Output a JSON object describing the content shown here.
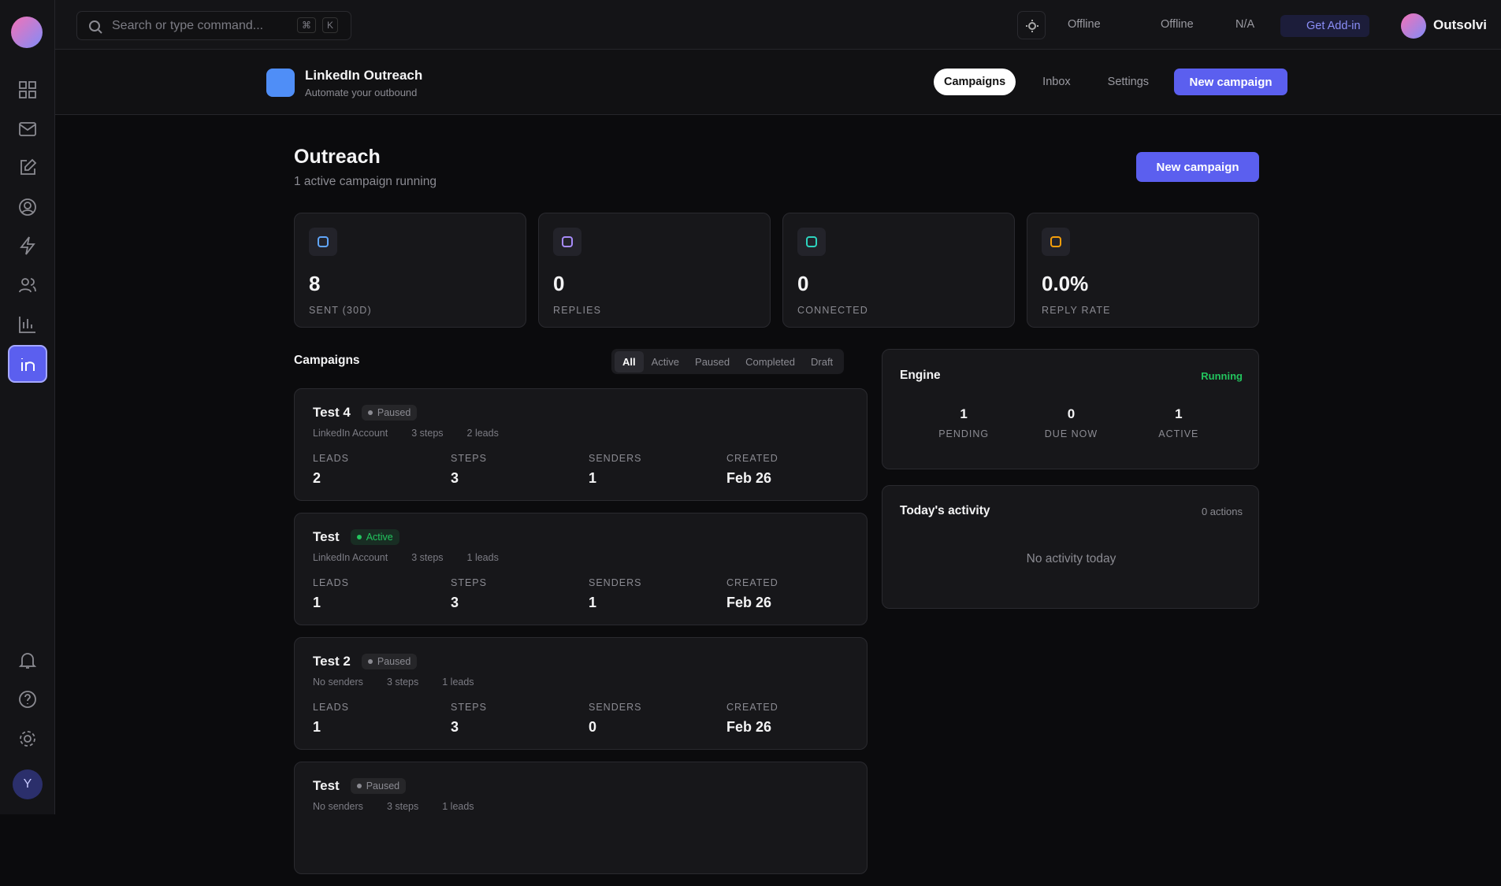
{
  "search": {
    "placeholder": "Search or type command...",
    "shortcut": [
      "⌘",
      "K"
    ]
  },
  "topbar": {
    "status": [
      "Offline",
      "Offline",
      "N/A"
    ],
    "addin": "Get Add-in",
    "user": "Outsolvi"
  },
  "sidebar": {
    "avatar": "Y"
  },
  "header": {
    "title": "LinkedIn Outreach",
    "subtitle": "Automate your outbound",
    "tabs": [
      "Campaigns",
      "Inbox",
      "Settings"
    ],
    "button": "New campaign"
  },
  "page": {
    "title": "Outreach",
    "subtitle": "1 active campaign running",
    "button": "New campaign"
  },
  "stats": [
    {
      "value": "8",
      "label": "SENT (30D)",
      "color": "#60a5fa"
    },
    {
      "value": "0",
      "label": "REPLIES",
      "color": "#a78bfa"
    },
    {
      "value": "0",
      "label": "CONNECTED",
      "color": "#2dd4bf"
    },
    {
      "value": "0.0%",
      "label": "REPLY RATE",
      "color": "#f59e0b"
    }
  ],
  "campaigns": {
    "title": "Campaigns",
    "filters": [
      "All",
      "Active",
      "Paused",
      "Completed",
      "Draft"
    ],
    "columns": [
      "LEADS",
      "STEPS",
      "SENDERS",
      "CREATED"
    ],
    "items": [
      {
        "name": "Test 4",
        "status": "Paused",
        "status_color": "#8b8b92",
        "account": "LinkedIn Account",
        "steps_text": "3 steps",
        "leads_text": "2 leads",
        "metrics": [
          "2",
          "3",
          "1",
          "Feb 26"
        ]
      },
      {
        "name": "Test",
        "status": "Active",
        "status_color": "#22c55e",
        "account": "LinkedIn Account",
        "steps_text": "3 steps",
        "leads_text": "1 leads",
        "metrics": [
          "1",
          "3",
          "1",
          "Feb 26"
        ]
      },
      {
        "name": "Test 2",
        "status": "Paused",
        "status_color": "#8b8b92",
        "account": "No senders",
        "steps_text": "3 steps",
        "leads_text": "1 leads",
        "metrics": [
          "1",
          "3",
          "0",
          "Feb 26"
        ]
      },
      {
        "name": "Test",
        "status": "Paused",
        "status_color": "#8b8b92",
        "account": "No senders",
        "steps_text": "3 steps",
        "leads_text": "1 leads"
      }
    ]
  },
  "engine": {
    "title": "Engine",
    "status": "Running",
    "metrics": [
      {
        "value": "1",
        "label": "PENDING"
      },
      {
        "value": "0",
        "label": "DUE NOW"
      },
      {
        "value": "1",
        "label": "ACTIVE"
      }
    ]
  },
  "activity": {
    "title": "Today's activity",
    "count": "0 actions",
    "empty": "No activity today"
  }
}
